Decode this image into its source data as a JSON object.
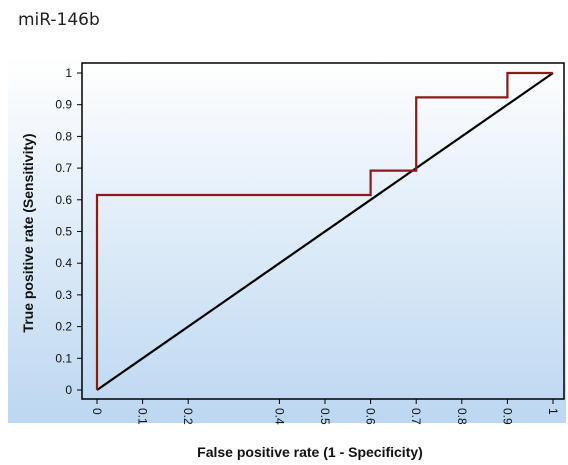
{
  "chart_data": {
    "type": "line",
    "title": "miR-146b",
    "xlabel": "False positive rate (1 - Specificity)",
    "ylabel": "True positive rate (Sensitivity)",
    "xlim": [
      0,
      1
    ],
    "ylim": [
      0,
      1
    ],
    "x_ticks": [
      "0",
      "0.1",
      "0.2",
      "0.4",
      "0.5",
      "0.6",
      "0.7",
      "0.8",
      "0.9",
      "1"
    ],
    "x_tick_values": [
      0,
      0.1,
      0.2,
      0.4,
      0.5,
      0.6,
      0.7,
      0.8,
      0.9,
      1
    ],
    "y_ticks": [
      "0",
      "0.1",
      "0.2",
      "0.3",
      "0.4",
      "0.5",
      "0.6",
      "0.7",
      "0.8",
      "0.9",
      "1"
    ],
    "y_tick_values": [
      0,
      0.1,
      0.2,
      0.3,
      0.4,
      0.5,
      0.6,
      0.7,
      0.8,
      0.9,
      1
    ],
    "series": [
      {
        "color": "#8b1a1a",
        "x": [
          0,
          0,
          0.6,
          0.6,
          0.7,
          0.7,
          0.9,
          0.9,
          1
        ],
        "y": [
          0,
          0.615,
          0.615,
          0.692,
          0.692,
          0.923,
          0.923,
          1,
          1
        ]
      },
      {
        "color": "#000000",
        "x": [
          0,
          1
        ],
        "y": [
          0,
          1
        ]
      }
    ],
    "background_gradient": [
      "#ffffff",
      "#bcd7f1"
    ]
  }
}
